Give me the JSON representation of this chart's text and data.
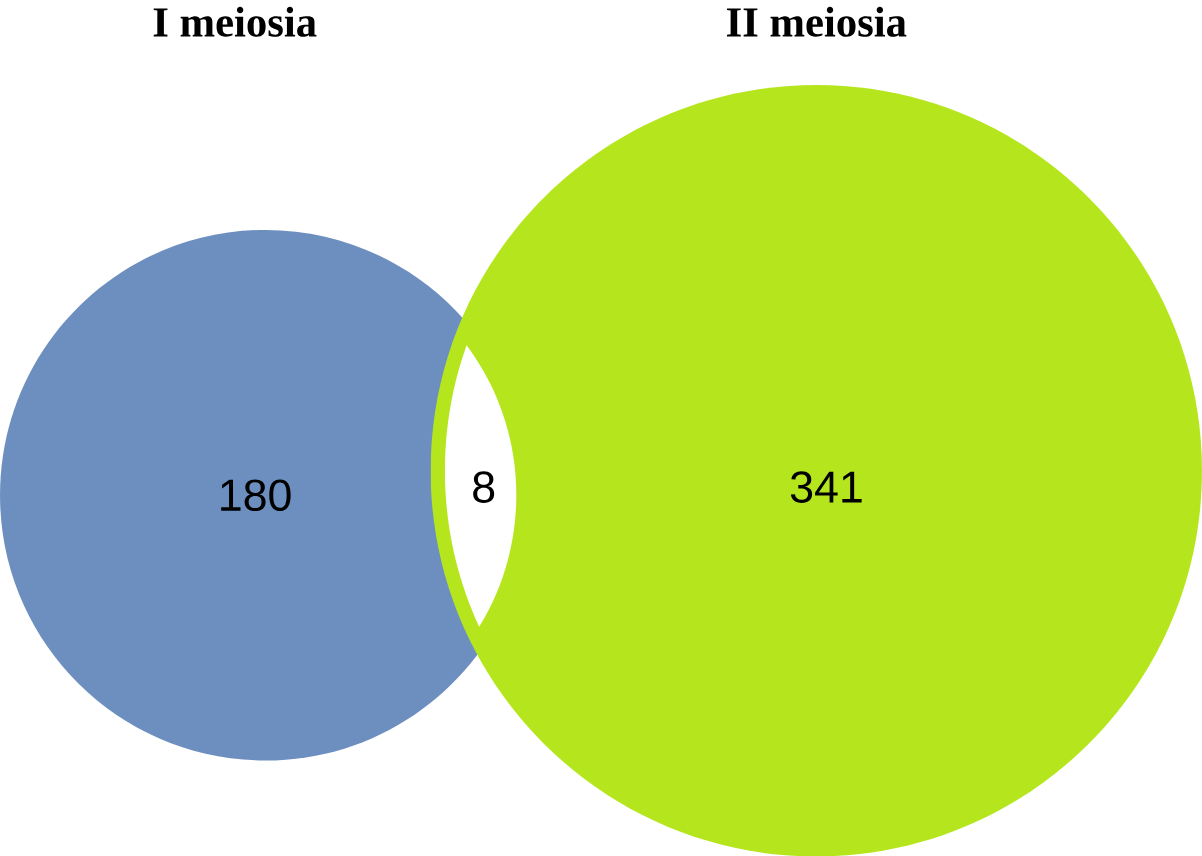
{
  "chart_data": {
    "type": "other",
    "categories": [
      "I meiosia",
      null,
      "II meiosia"
    ],
    "values": [
      180,
      8,
      341
    ],
    "data_labels": true,
    "colors": [
      "#6d8fbf",
      "#ffffff",
      "#b5e61d"
    ]
  }
}
